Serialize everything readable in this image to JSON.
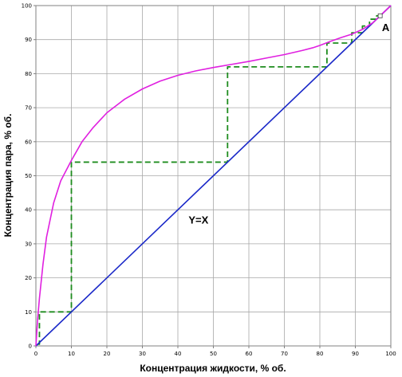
{
  "chart_data": {
    "type": "line",
    "title": "",
    "xlabel": "Концентрация жидкости, % об.",
    "ylabel": "Концентрация пара, % об.",
    "xlim": [
      0,
      100
    ],
    "ylim": [
      0,
      100
    ],
    "x_ticks": [
      "0",
      "10",
      "20",
      "30",
      "40",
      "50",
      "60",
      "70",
      "80",
      "90",
      "100"
    ],
    "y_ticks": [
      "0",
      "10",
      "20",
      "30",
      "40",
      "50",
      "60",
      "70",
      "80",
      "90",
      "100"
    ],
    "grid": true,
    "colors": {
      "equilibrium": "#e020e0",
      "diagonal": "#1a28c8",
      "steps": "#1e8c1e"
    },
    "series": [
      {
        "name": "",
        "role": "equilibrium",
        "x": [
          0,
          0.5,
          1,
          2,
          3,
          5,
          7,
          10,
          13,
          16,
          20,
          25,
          30,
          35,
          40,
          45,
          50,
          55,
          60,
          65,
          70,
          75,
          78,
          80,
          83,
          86,
          89,
          92,
          95,
          97,
          100
        ],
        "y": [
          0,
          8,
          14,
          24,
          32,
          42,
          48.5,
          54.5,
          60,
          64,
          68.5,
          72.5,
          75.5,
          77.8,
          79.5,
          80.8,
          81.8,
          82.7,
          83.6,
          84.6,
          85.6,
          86.8,
          87.6,
          88.3,
          89.5,
          90.6,
          91.6,
          93,
          95,
          97,
          100
        ]
      },
      {
        "name": "Y=X",
        "role": "diagonal",
        "x": [
          0,
          100
        ],
        "y": [
          0,
          100
        ]
      },
      {
        "name": "",
        "role": "steps",
        "x": [
          0.5,
          1,
          1,
          10,
          10,
          54,
          54,
          82,
          82,
          89,
          89,
          92,
          92,
          94,
          94,
          96,
          96,
          97
        ],
        "y": [
          0.5,
          0.5,
          10,
          10,
          54,
          54,
          82,
          82,
          89,
          89,
          92,
          92,
          94,
          94,
          96,
          96,
          97,
          97
        ]
      }
    ],
    "annotations": [
      {
        "text": "Y=X",
        "x": 43,
        "y": 36
      },
      {
        "text": "A",
        "x": 97.5,
        "y": 92.5
      }
    ],
    "point_A": {
      "x": 97,
      "y": 97
    }
  }
}
